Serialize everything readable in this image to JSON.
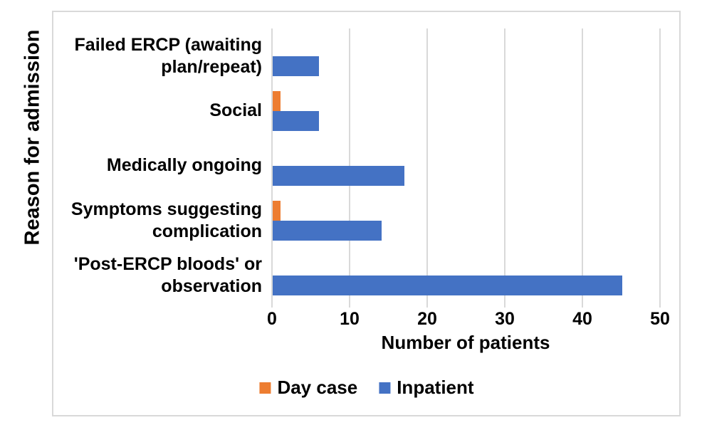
{
  "chart_data": {
    "type": "bar",
    "orientation": "horizontal",
    "xlabel": "Number of patients",
    "ylabel": "Reason for admission",
    "xlim": [
      0,
      50
    ],
    "xticks": [
      0,
      10,
      20,
      30,
      40,
      50
    ],
    "grid": "vertical",
    "legend_position": "bottom-center",
    "categories": [
      "Failed ERCP (awaiting plan/repeat)",
      "Social",
      "Medically ongoing",
      "Symptoms suggesting complication",
      "'Post-ERCP bloods' or observation"
    ],
    "series": [
      {
        "name": "Day case",
        "color": "#ED7D31",
        "values": [
          0,
          1,
          0,
          1,
          0
        ]
      },
      {
        "name": "Inpatient",
        "color": "#4472C4",
        "values": [
          6,
          6,
          17,
          14,
          45
        ]
      }
    ]
  },
  "colors": {
    "background": "#FFFFFF",
    "gridline": "#D9D9D9",
    "chart_border": "#D9D9D9",
    "text": "#000000"
  }
}
